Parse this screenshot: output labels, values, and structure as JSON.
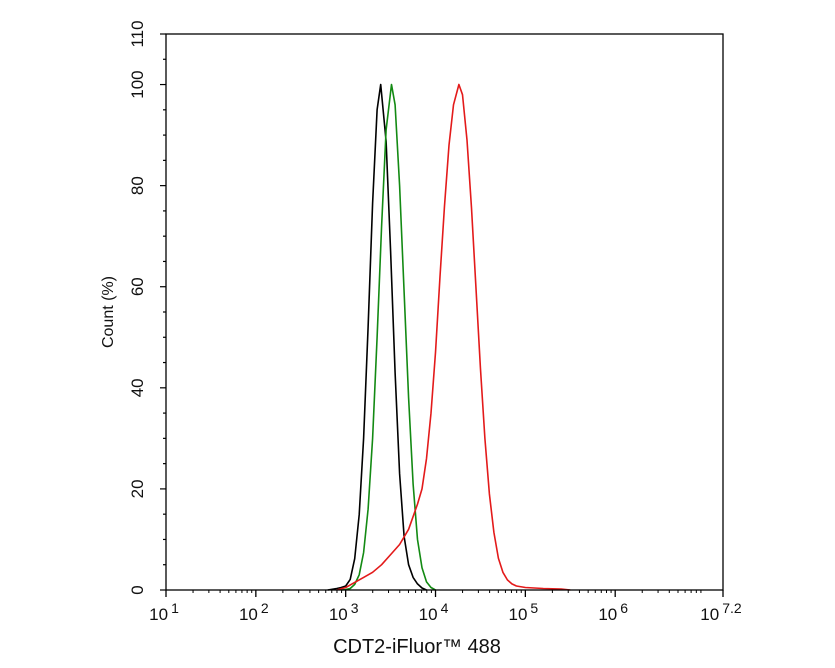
{
  "chart_data": {
    "type": "line",
    "title": "",
    "xlabel": "CDT2-iFluor™ 488",
    "ylabel": "Count  (%)",
    "x_scale": "log10",
    "xlim_log10": [
      1,
      7.2
    ],
    "ylim": [
      0,
      110
    ],
    "grid": false,
    "x_ticks": [
      {
        "base": "10",
        "exp": "1",
        "value": 1
      },
      {
        "base": "10",
        "exp": "2",
        "value": 2
      },
      {
        "base": "10",
        "exp": "3",
        "value": 3
      },
      {
        "base": "10",
        "exp": "4",
        "value": 4
      },
      {
        "base": "10",
        "exp": "5",
        "value": 5
      },
      {
        "base": "10",
        "exp": "6",
        "value": 6
      },
      {
        "base": "10",
        "exp": "7.2",
        "value": 7.2
      }
    ],
    "y_ticks": [
      "0",
      "20",
      "40",
      "60",
      "80",
      "100",
      "110"
    ],
    "series": [
      {
        "name": "black",
        "color": "#000000",
        "x_log10": [
          2.8,
          2.9,
          2.95,
          3.0,
          3.05,
          3.1,
          3.15,
          3.2,
          3.25,
          3.3,
          3.35,
          3.39,
          3.45,
          3.5,
          3.55,
          3.6,
          3.65,
          3.7,
          3.75,
          3.8,
          3.85,
          3.9
        ],
        "y": [
          0,
          0.3,
          0.5,
          0.8,
          2.1,
          6.2,
          14.9,
          30,
          52,
          76.5,
          95,
          100,
          88.8,
          67,
          43,
          23,
          10.6,
          5,
          2.5,
          1.2,
          0.4,
          0
        ]
      },
      {
        "name": "green",
        "color": "#138a13",
        "x_log10": [
          2.95,
          3.0,
          3.05,
          3.1,
          3.15,
          3.2,
          3.25,
          3.3,
          3.35,
          3.4,
          3.45,
          3.51,
          3.55,
          3.6,
          3.65,
          3.7,
          3.75,
          3.8,
          3.85,
          3.9,
          3.95,
          4.0
        ],
        "y": [
          0,
          0.1,
          0.3,
          1.1,
          3,
          7.4,
          16,
          30,
          50,
          72,
          91,
          100,
          96,
          80,
          59,
          38,
          21,
          10,
          4.4,
          1.6,
          0.5,
          0
        ]
      },
      {
        "name": "red",
        "color": "#e31a1a",
        "x_log10": [
          2.9,
          3.0,
          3.1,
          3.2,
          3.3,
          3.4,
          3.5,
          3.6,
          3.7,
          3.8,
          3.85,
          3.9,
          3.95,
          4.0,
          4.05,
          4.1,
          4.15,
          4.2,
          4.26,
          4.3,
          4.35,
          4.4,
          4.45,
          4.5,
          4.55,
          4.6,
          4.65,
          4.7,
          4.75,
          4.8,
          4.85,
          4.9,
          5.0,
          5.2,
          5.4,
          5.5
        ],
        "y": [
          0,
          0.5,
          1.5,
          2.5,
          3.5,
          5,
          7,
          9,
          12,
          17,
          20,
          26,
          35,
          47,
          62,
          76,
          88,
          96,
          100,
          98,
          89,
          75.6,
          60,
          44,
          30,
          19,
          11.4,
          6.3,
          3.5,
          2,
          1.2,
          0.8,
          0.5,
          0.3,
          0.2,
          0
        ]
      }
    ]
  }
}
